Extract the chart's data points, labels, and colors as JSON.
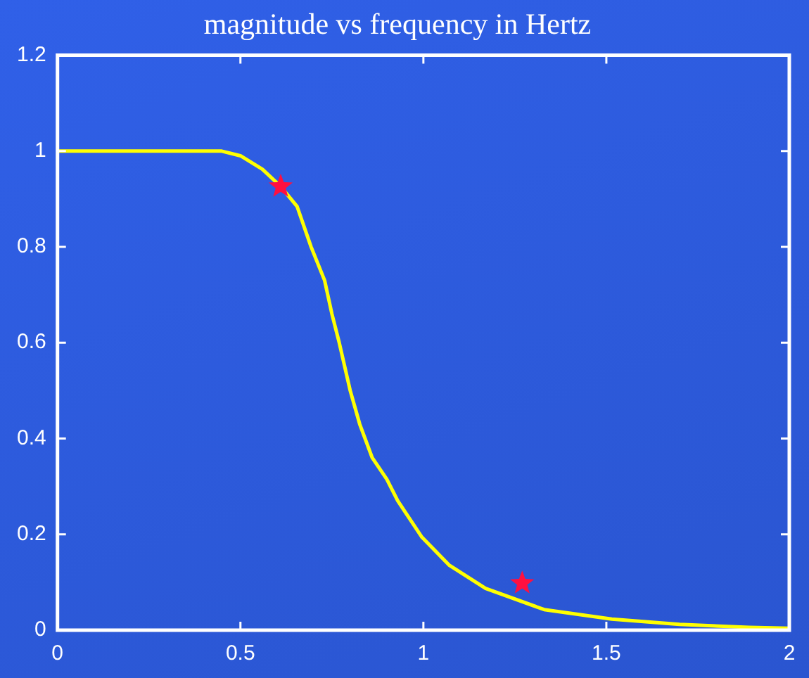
{
  "chart_data": {
    "type": "line",
    "title": "magnitude vs frequency in Hertz",
    "xlim": [
      0,
      2
    ],
    "xticks": [
      0,
      0.5,
      1,
      1.5,
      2
    ],
    "ylim": [
      0,
      1.2
    ],
    "yticks": [
      0,
      0.2,
      0.4,
      0.6,
      0.8,
      1,
      1.2
    ],
    "grid": false,
    "legend": false,
    "series": [
      {
        "type": "line",
        "color": "#ffff00",
        "marker": "none",
        "x": [
          0,
          0.2,
          0.447,
          0.5,
          0.56,
          0.61,
          0.655,
          0.693,
          0.73,
          0.75,
          0.77,
          0.8,
          0.826,
          0.86,
          0.9,
          0.93,
          0.996,
          1.07,
          1.17,
          1.33,
          1.515,
          1.7,
          1.89,
          2
        ],
        "values": [
          1,
          1,
          1,
          0.99,
          0.962,
          0.926,
          0.884,
          0.8,
          0.73,
          0.66,
          0.6,
          0.5,
          0.43,
          0.36,
          0.315,
          0.27,
          0.194,
          0.136,
          0.087,
          0.043,
          0.023,
          0.012,
          0.006,
          0.004
        ]
      },
      {
        "type": "scatter",
        "color": "#ff1040",
        "marker": "star",
        "x": [
          0.61,
          1.27
        ],
        "values": [
          0.926,
          0.098
        ]
      }
    ]
  }
}
